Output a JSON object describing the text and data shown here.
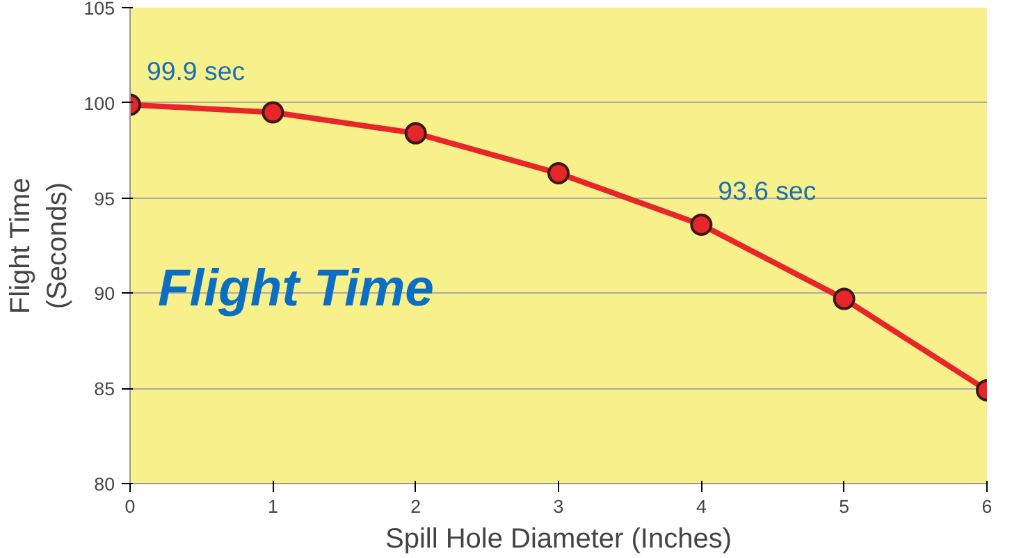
{
  "chart_data": {
    "type": "line",
    "xlabel": "Spill Hole Diameter (Inches)",
    "ylabel": "Flight Time\n(Seconds)",
    "x": [
      0,
      1,
      2,
      3,
      4,
      5,
      6
    ],
    "series": [
      {
        "color": "#e8262a",
        "values": [
          99.9,
          99.5,
          98.4,
          96.3,
          93.6,
          89.7,
          84.9
        ]
      }
    ],
    "xlim": [
      0,
      6
    ],
    "xticks": [
      0,
      1,
      2,
      3,
      4,
      5,
      6
    ],
    "ylim": [
      80,
      105
    ],
    "yticks": [
      80,
      85,
      90,
      95,
      100,
      105
    ],
    "grid": "y",
    "marker": "circle",
    "line_style": "solid",
    "annotations": [
      "Flight Time",
      {
        "text": "99.9 sec",
        "x": 0,
        "y": 99.9
      },
      {
        "text": "93.6 sec",
        "x": 4,
        "y": 93.6
      }
    ]
  }
}
